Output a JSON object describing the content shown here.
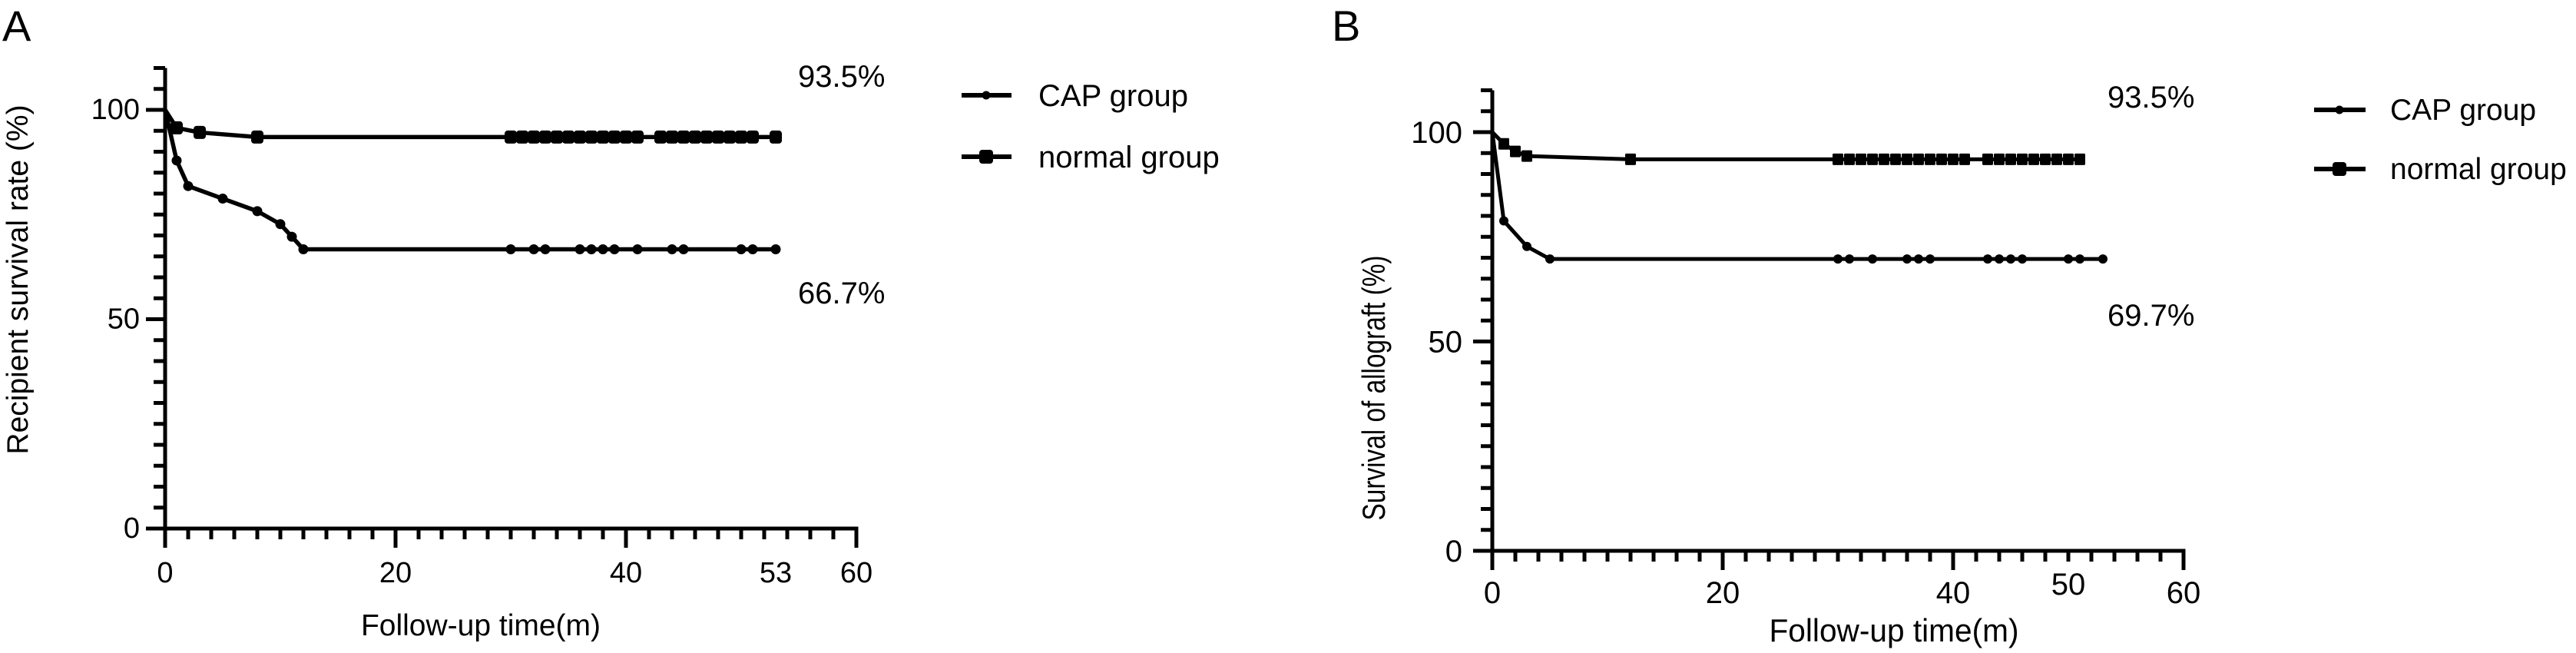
{
  "chart_data": [
    {
      "type": "line",
      "panel_label": "A",
      "xlabel": "Follow-up time(m)",
      "ylabel": "Recipient survival rate (%)",
      "xlim": [
        0,
        60
      ],
      "ylim": [
        0,
        110
      ],
      "x_ticks": [
        0,
        20,
        40,
        53,
        60
      ],
      "x_tick_labels": [
        "0",
        "20",
        "40",
        "53",
        "60"
      ],
      "y_ticks": [
        0,
        50,
        100
      ],
      "y_tick_labels": [
        "0",
        "50",
        "100"
      ],
      "grid": false,
      "legend_position": "right",
      "annotations": [
        "93.5%",
        "66.7%"
      ],
      "series": [
        {
          "name": "CAP group",
          "marker_icon": "circle",
          "points": [
            [
              0,
              100
            ],
            [
              1,
              87.9
            ],
            [
              2,
              81.8
            ],
            [
              5,
              78.8
            ],
            [
              8,
              75.8
            ],
            [
              10,
              72.7
            ],
            [
              11,
              69.7
            ],
            [
              12,
              66.7
            ],
            [
              53,
              66.7
            ]
          ],
          "censored_x": [
            30,
            32,
            33,
            36,
            37,
            38,
            39,
            41,
            44,
            45,
            50,
            51,
            53
          ]
        },
        {
          "name": "normal group",
          "marker_icon": "square",
          "points": [
            [
              0,
              100
            ],
            [
              1,
              95.7
            ],
            [
              3,
              94.6
            ],
            [
              8,
              93.5
            ],
            [
              53,
              93.5
            ]
          ],
          "censored_x": [
            30,
            31,
            32,
            33,
            34,
            35,
            36,
            37,
            38,
            39,
            40,
            41,
            43,
            44,
            45,
            46,
            47,
            48,
            49,
            50,
            51,
            53
          ]
        }
      ]
    },
    {
      "type": "line",
      "panel_label": "B",
      "xlabel": "Follow-up time(m)",
      "ylabel": "Survival of allograft (%)",
      "xlim": [
        0,
        60
      ],
      "ylim": [
        0,
        110
      ],
      "x_ticks": [
        0,
        20,
        40,
        50,
        60
      ],
      "x_tick_labels": [
        "0",
        "20",
        "40",
        "50",
        "60"
      ],
      "y_ticks": [
        0,
        50,
        100
      ],
      "y_tick_labels": [
        "0",
        "50",
        "100"
      ],
      "grid": false,
      "legend_position": "right",
      "annotations": [
        "93.5%",
        "69.7%"
      ],
      "series": [
        {
          "name": "CAP group",
          "marker_icon": "circle",
          "points": [
            [
              0,
              100
            ],
            [
              1,
              78.8
            ],
            [
              3,
              72.7
            ],
            [
              5,
              69.7
            ],
            [
              53,
              69.7
            ]
          ],
          "censored_x": [
            30,
            31,
            33,
            36,
            37,
            38,
            43,
            44,
            45,
            46,
            50,
            51,
            53
          ]
        },
        {
          "name": "normal group",
          "marker_icon": "square",
          "points": [
            [
              0,
              100
            ],
            [
              1,
              97.2
            ],
            [
              2,
              95.4
            ],
            [
              3,
              94.3
            ],
            [
              12,
              93.5
            ],
            [
              51,
              93.5
            ]
          ],
          "censored_x": [
            30,
            31,
            32,
            33,
            34,
            35,
            36,
            37,
            38,
            39,
            40,
            41,
            43,
            44,
            45,
            46,
            47,
            48,
            49,
            50,
            51
          ]
        }
      ]
    }
  ]
}
